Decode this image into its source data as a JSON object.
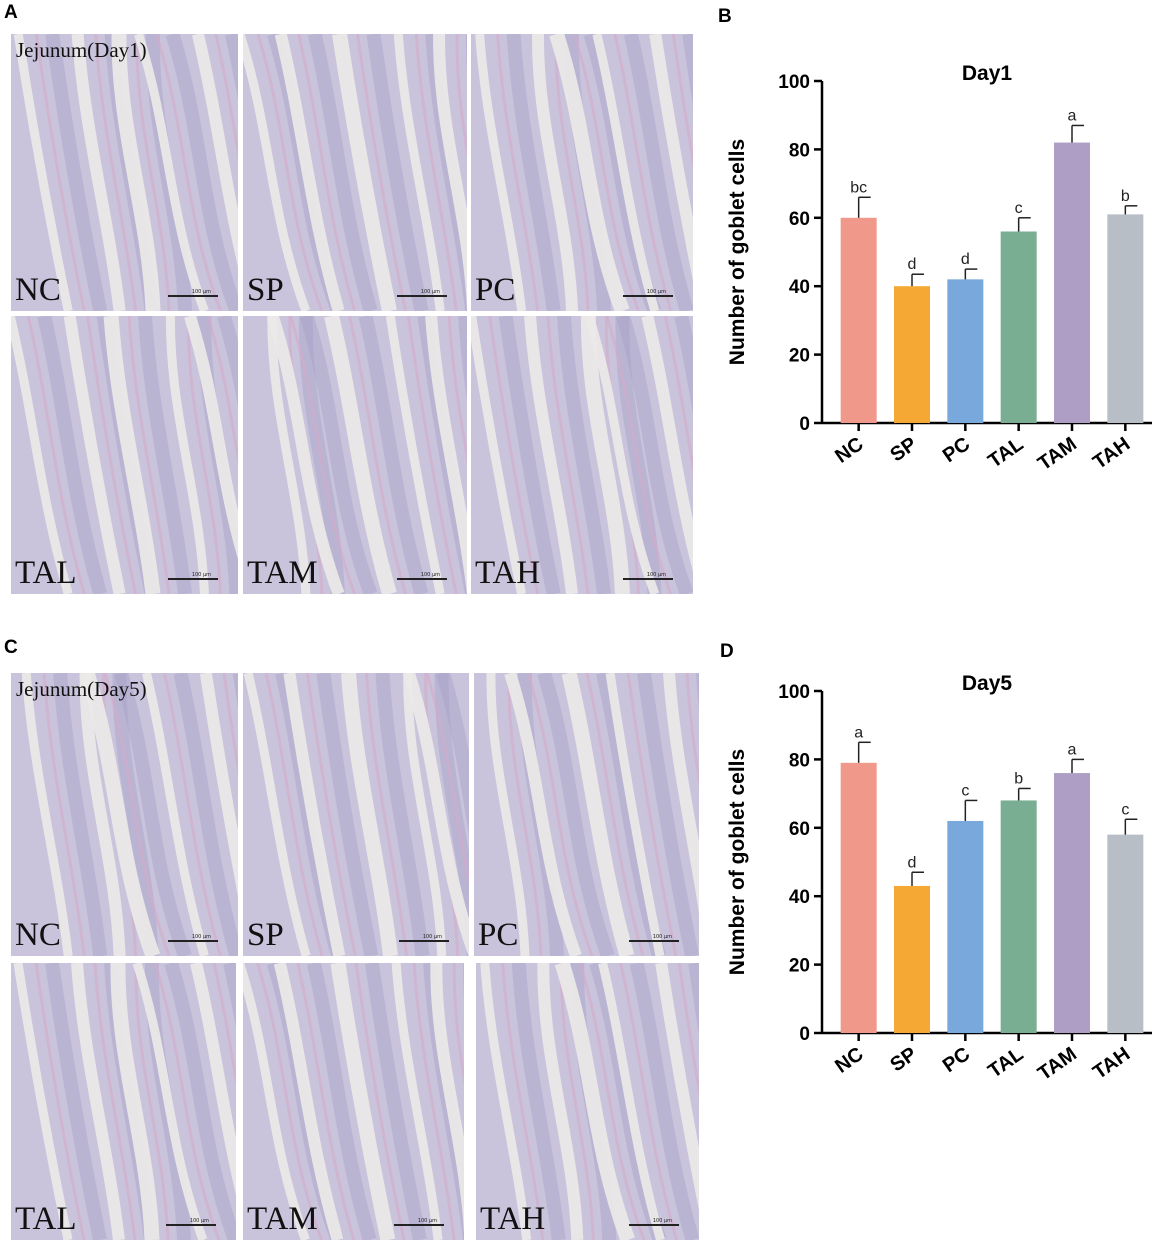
{
  "panels": {
    "a": {
      "letter": "A",
      "title": "Jejunum(Day1)",
      "tiles": [
        "NC",
        "SP",
        "PC",
        "TAL",
        "TAM",
        "TAH"
      ]
    },
    "b": {
      "letter": "B"
    },
    "c": {
      "letter": "C",
      "title": "Jejunum(Day5)",
      "tiles": [
        "NC",
        "SP",
        "PC",
        "TAL",
        "TAM",
        "TAH"
      ]
    },
    "d": {
      "letter": "D"
    }
  },
  "scale_bar_text": "100 μm",
  "chart_data": [
    {
      "type": "bar",
      "title": "Day1",
      "ylabel": "Number of goblet cells",
      "xlabel": "",
      "categories": [
        "NC",
        "SP",
        "PC",
        "TAL",
        "TAM",
        "TAH"
      ],
      "values": [
        60,
        40,
        42,
        56,
        82,
        61
      ],
      "errors": [
        6,
        3.5,
        3,
        4,
        5,
        2.5
      ],
      "letters": [
        "bc",
        "d",
        "d",
        "c",
        "a",
        "b"
      ],
      "colors": [
        "#f0998a",
        "#f5a833",
        "#78a8dc",
        "#79ae93",
        "#ae9dc4",
        "#b8bec6"
      ],
      "ylim": [
        0,
        100
      ],
      "yticks": [
        0,
        20,
        40,
        60,
        80,
        100
      ],
      "grid": false,
      "legend": "none"
    },
    {
      "type": "bar",
      "title": "Day5",
      "ylabel": "Number of goblet cells",
      "xlabel": "",
      "categories": [
        "NC",
        "SP",
        "PC",
        "TAL",
        "TAM",
        "TAH"
      ],
      "values": [
        79,
        43,
        62,
        68,
        76,
        58
      ],
      "errors": [
        6,
        4,
        6,
        3.5,
        4,
        4.5
      ],
      "letters": [
        "a",
        "d",
        "c",
        "b",
        "a",
        "c"
      ],
      "colors": [
        "#f0998a",
        "#f5a833",
        "#78a8dc",
        "#79ae93",
        "#ae9dc4",
        "#b8bec6"
      ],
      "ylim": [
        0,
        100
      ],
      "yticks": [
        0,
        20,
        40,
        60,
        80,
        100
      ],
      "grid": false,
      "legend": "none"
    }
  ]
}
